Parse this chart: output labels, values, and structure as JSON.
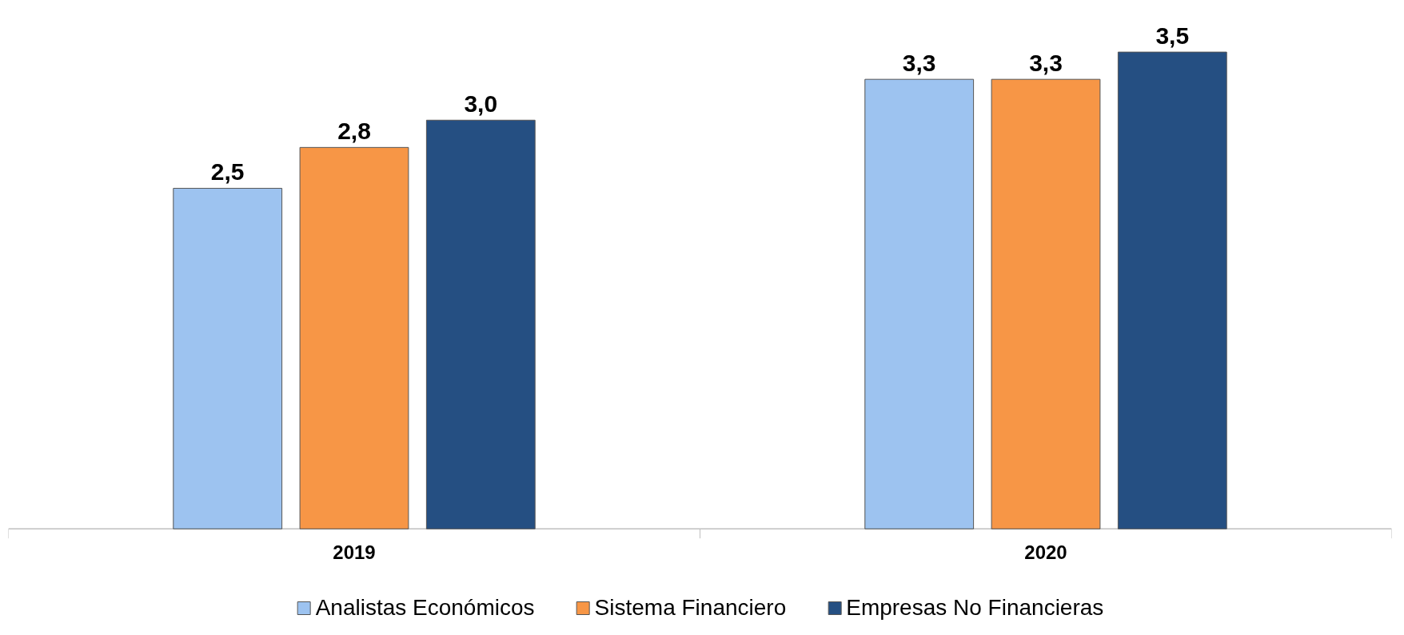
{
  "chart_data": {
    "type": "bar",
    "categories": [
      "2019",
      "2020"
    ],
    "series": [
      {
        "name": "Analistas Económicos",
        "color": "#9dc3f0",
        "values": [
          2.5,
          3.3
        ],
        "value_labels": [
          "2,5",
          "3,3"
        ]
      },
      {
        "name": "Sistema Financiero",
        "color": "#f79646",
        "values": [
          2.8,
          3.3
        ],
        "value_labels": [
          "2,8",
          "3,3"
        ]
      },
      {
        "name": "Empresas No Financieras",
        "color": "#254f82",
        "values": [
          3.0,
          3.5
        ],
        "value_labels": [
          "3,0",
          "3,5"
        ]
      }
    ],
    "legend": "bottom",
    "grid": false
  }
}
